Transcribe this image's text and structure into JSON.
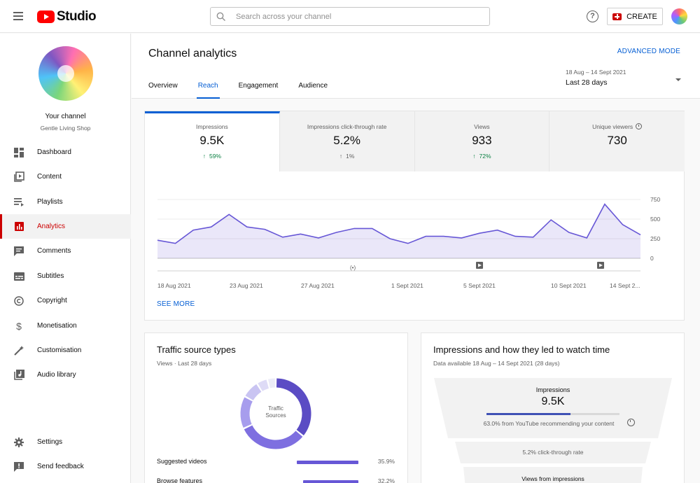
{
  "header": {
    "logo_text": "Studio",
    "search_placeholder": "Search across your channel",
    "create_label": "CREATE"
  },
  "sidebar": {
    "channel_title": "Your channel",
    "channel_name": "Gentle Living Shop",
    "items": [
      {
        "label": "Dashboard",
        "icon": "dashboard-icon"
      },
      {
        "label": "Content",
        "icon": "content-icon"
      },
      {
        "label": "Playlists",
        "icon": "playlists-icon"
      },
      {
        "label": "Analytics",
        "icon": "analytics-icon",
        "active": true
      },
      {
        "label": "Comments",
        "icon": "comments-icon"
      },
      {
        "label": "Subtitles",
        "icon": "subtitles-icon"
      },
      {
        "label": "Copyright",
        "icon": "copyright-icon"
      },
      {
        "label": "Monetisation",
        "icon": "monetisation-icon"
      },
      {
        "label": "Customisation",
        "icon": "customisation-icon"
      },
      {
        "label": "Audio library",
        "icon": "audio-library-icon"
      }
    ],
    "settings_label": "Settings",
    "feedback_label": "Send feedback"
  },
  "page": {
    "title": "Channel analytics",
    "advanced_mode": "ADVANCED MODE",
    "tabs": [
      {
        "label": "Overview"
      },
      {
        "label": "Reach",
        "active": true
      },
      {
        "label": "Engagement"
      },
      {
        "label": "Audience"
      }
    ],
    "date_range_sub": "18 Aug – 14 Sept 2021",
    "date_range_main": "Last 28 days"
  },
  "metrics": [
    {
      "label": "Impressions",
      "value": "9.5K",
      "change": "59%",
      "direction": "up"
    },
    {
      "label": "Impressions click-through rate",
      "value": "5.2%",
      "change": "1%",
      "direction": "neutral"
    },
    {
      "label": "Views",
      "value": "933",
      "change": "72%",
      "direction": "up"
    },
    {
      "label": "Unique viewers",
      "value": "730"
    }
  ],
  "chart_data": {
    "type": "area",
    "series": [
      {
        "values": [
          230,
          190,
          360,
          400,
          560,
          400,
          370,
          270,
          310,
          260,
          330,
          380,
          380,
          250,
          190,
          280,
          280,
          260,
          320,
          360,
          280,
          270,
          490,
          330,
          260,
          690,
          430,
          300
        ]
      }
    ],
    "x_tick_labels": [
      "18 Aug 2021",
      "23 Aug 2021",
      "27 Aug 2021",
      "1 Sept 2021",
      "5 Sept 2021",
      "10 Sept 2021",
      "14 Sept 2..."
    ],
    "y_tick_labels": [
      "750",
      "500",
      "250",
      "0"
    ],
    "ylim": [
      0,
      750
    ],
    "grid": true,
    "color": "#6757d6"
  },
  "see_more": "SEE MORE",
  "traffic": {
    "title": "Traffic source types",
    "subtitle": "Views · Last 28 days",
    "donut_label": "Traffic Sources",
    "donut_segments": [
      {
        "value": 35.9,
        "color": "#5b4cc4"
      },
      {
        "value": 32.2,
        "color": "#7e6fe0"
      },
      {
        "value": 15,
        "color": "#a79ded"
      },
      {
        "value": 8,
        "color": "#c9c4f2"
      },
      {
        "value": 5,
        "color": "#dedbf6"
      },
      {
        "value": 3.9,
        "color": "#ececf7"
      }
    ],
    "rows": [
      {
        "label": "Suggested videos",
        "value": "35.9%",
        "fraction": 0.359
      },
      {
        "label": "Browse features",
        "value": "32.2%",
        "fraction": 0.322
      }
    ]
  },
  "funnel": {
    "title": "Impressions and how they led to watch time",
    "subtitle": "Data available 18 Aug – 14 Sept 2021 (28 days)",
    "impressions_label": "Impressions",
    "impressions_value": "9.5K",
    "recommended_fraction": 0.63,
    "recommended_text": "63.0% from YouTube recommending your content",
    "ctr_text": "5.2% click-through rate",
    "views_text": "Views from impressions"
  }
}
